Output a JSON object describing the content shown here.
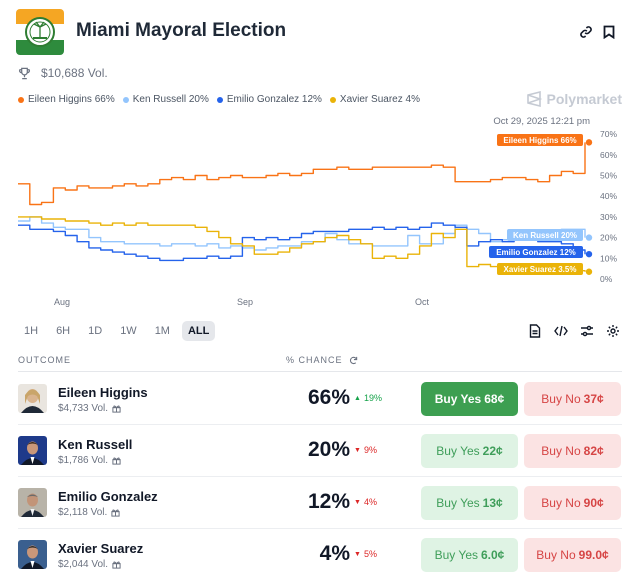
{
  "header": {
    "title": "Miami Mayoral Election",
    "volume": "$10,688 Vol.",
    "brand": "Polymarket"
  },
  "legend": [
    {
      "label": "Eileen Higgins 66%",
      "color": "#f97316"
    },
    {
      "label": "Ken Russell 20%",
      "color": "#93c5fd"
    },
    {
      "label": "Emilio Gonzalez 12%",
      "color": "#2563eb"
    },
    {
      "label": "Xavier Suarez 4%",
      "color": "#eab308"
    }
  ],
  "chart_data": {
    "type": "line",
    "timestamp": "Oct 29, 2025 12:21 pm",
    "x_ticks": [
      "Aug",
      "Sep",
      "Oct"
    ],
    "y_ticks": [
      "70%",
      "60%",
      "50%",
      "40%",
      "30%",
      "20%",
      "10%",
      "0%"
    ],
    "ylim": [
      0,
      70
    ],
    "series": [
      {
        "name": "Eileen Higgins",
        "color": "#f97316",
        "end_label": "Eileen Higgins 66%",
        "values": [
          46,
          36,
          37,
          44,
          43,
          45,
          44,
          44,
          45,
          46,
          45,
          46,
          48,
          49,
          48,
          50,
          48,
          49,
          50,
          49,
          49,
          50,
          51,
          50,
          51,
          53,
          53,
          54,
          53,
          53,
          54,
          54,
          54,
          54,
          54,
          55,
          54,
          47,
          47,
          47,
          48,
          49,
          49,
          48,
          47,
          50,
          52,
          51,
          66
        ]
      },
      {
        "name": "Ken Russell",
        "color": "#93c5fd",
        "end_label": "Ken Russell 20%",
        "values": [
          28,
          30,
          27,
          25,
          24,
          24,
          20,
          18,
          18,
          17,
          17,
          17,
          16,
          17,
          17,
          16,
          17,
          15,
          16,
          15,
          14,
          15,
          16,
          16,
          18,
          18,
          22,
          19,
          17,
          17,
          16,
          16,
          16,
          21,
          17,
          17,
          22,
          26,
          24,
          22,
          18,
          19,
          20,
          20,
          19,
          20,
          24,
          24,
          20
        ]
      },
      {
        "name": "Emilio Gonzalez",
        "color": "#2563eb",
        "end_label": "Emilio Gonzalez 12%",
        "values": [
          26,
          24,
          24,
          23,
          21,
          18,
          15,
          14,
          13,
          12,
          11,
          10,
          9,
          9,
          10,
          10,
          11,
          10,
          11,
          20,
          19,
          20,
          19,
          20,
          22,
          23,
          23,
          23,
          24,
          24,
          25,
          24,
          25,
          24,
          25,
          27,
          26,
          25,
          16,
          18,
          19,
          18,
          19,
          19,
          18,
          18,
          17,
          14,
          12
        ]
      },
      {
        "name": "Xavier Suarez",
        "color": "#eab308",
        "end_label": "Xavier Suarez 3.5%",
        "values": [
          30,
          30,
          29,
          29,
          28,
          28,
          27,
          26,
          27,
          26,
          27,
          26,
          26,
          26,
          26,
          25,
          23,
          20,
          17,
          16,
          12,
          12,
          13,
          15,
          17,
          18,
          20,
          21,
          19,
          17,
          10,
          11,
          10,
          12,
          16,
          22,
          20,
          24,
          6,
          7,
          6,
          6,
          6,
          5,
          6,
          5,
          4,
          4,
          3.5
        ]
      }
    ]
  },
  "timeframes": [
    "1H",
    "6H",
    "1D",
    "1W",
    "1M",
    "ALL"
  ],
  "active_timeframe": "ALL",
  "table": {
    "col_outcome": "OUTCOME",
    "col_chance": "% CHANCE",
    "rows": [
      {
        "name": "Eileen Higgins",
        "vol": "$4,733 Vol.",
        "pct": "66%",
        "change": "19%",
        "direction": "up",
        "yes_label": "Buy Yes",
        "yes_price": "68¢",
        "no_label": "Buy No",
        "no_price": "37¢"
      },
      {
        "name": "Ken Russell",
        "vol": "$1,786 Vol.",
        "pct": "20%",
        "change": "9%",
        "direction": "down",
        "yes_label": "Buy Yes",
        "yes_price": "22¢",
        "no_label": "Buy No",
        "no_price": "82¢"
      },
      {
        "name": "Emilio Gonzalez",
        "vol": "$2,118 Vol.",
        "pct": "12%",
        "change": "4%",
        "direction": "down",
        "yes_label": "Buy Yes",
        "yes_price": "13¢",
        "no_label": "Buy No",
        "no_price": "90¢"
      },
      {
        "name": "Xavier Suarez",
        "vol": "$2,044 Vol.",
        "pct": "4%",
        "change": "5%",
        "direction": "down",
        "yes_label": "Buy Yes",
        "yes_price": "6.0¢",
        "no_label": "Buy No",
        "no_price": "99.0¢"
      }
    ]
  }
}
